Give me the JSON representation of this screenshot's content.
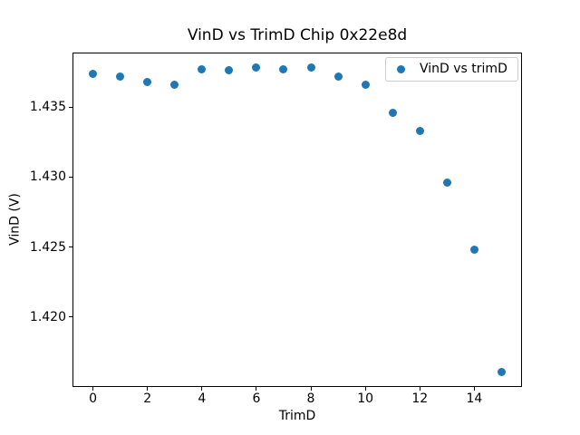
{
  "window": {
    "background": "#ffffff"
  },
  "chart_data": {
    "type": "scatter",
    "title": "VinD vs TrimD Chip 0x22e8d",
    "xlabel": "TrimD",
    "ylabel": "VinD (V)",
    "legend": {
      "label": "VinD vs trimD",
      "position": "upper right",
      "border_color": "#cccccc"
    },
    "marker_color": "#1f77b4",
    "grid": false,
    "x": [
      0,
      1,
      2,
      3,
      4,
      5,
      6,
      7,
      8,
      9,
      10,
      11,
      12,
      13,
      14,
      15
    ],
    "y": [
      1.4374,
      1.4372,
      1.4368,
      1.4366,
      1.4377,
      1.4376,
      1.4378,
      1.4377,
      1.4378,
      1.4372,
      1.4366,
      1.4346,
      1.4333,
      1.4296,
      1.4248,
      1.4161
    ],
    "xlim": [
      -0.75,
      15.75
    ],
    "ylim": [
      1.41501,
      1.43889
    ],
    "xticks": [
      0,
      2,
      4,
      6,
      8,
      10,
      12,
      14
    ],
    "xtick_labels": [
      "0",
      "2",
      "4",
      "6",
      "8",
      "10",
      "12",
      "14"
    ],
    "yticks": [
      1.42,
      1.425,
      1.43,
      1.435
    ],
    "ytick_labels": [
      "1.420",
      "1.425",
      "1.430",
      "1.435"
    ]
  }
}
